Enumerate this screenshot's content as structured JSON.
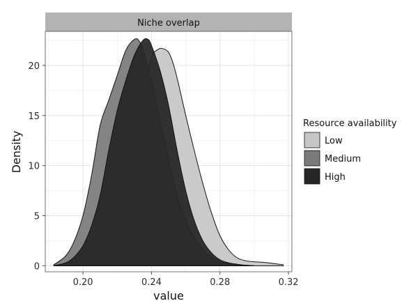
{
  "chart_data": {
    "type": "area",
    "facet_title": "Niche overlap",
    "xlabel": "value",
    "ylabel": "Density",
    "xlim": [
      0.178,
      0.322
    ],
    "ylim": [
      -0.6,
      23.4
    ],
    "x_ticks": [
      0.2,
      0.24,
      0.28,
      0.32
    ],
    "x_tick_labels": [
      "0.20",
      "0.24",
      "0.28",
      "0.32"
    ],
    "y_ticks": [
      0,
      5,
      10,
      15,
      20
    ],
    "y_tick_labels": [
      "0",
      "5",
      "10",
      "15",
      "20"
    ],
    "grid": true,
    "legend": {
      "title": "Resource availability",
      "position": "right",
      "entries": [
        "Low",
        "Medium",
        "High"
      ]
    },
    "series": [
      {
        "name": "Low",
        "color": "#c6c6c6",
        "x": [
          0.183,
          0.19,
          0.195,
          0.2,
          0.205,
          0.21,
          0.215,
          0.22,
          0.225,
          0.23,
          0.235,
          0.24,
          0.243,
          0.246,
          0.25,
          0.253,
          0.256,
          0.26,
          0.265,
          0.27,
          0.275,
          0.28,
          0.285,
          0.29,
          0.295,
          0.3,
          0.305,
          0.31,
          0.317
        ],
        "y": [
          0.1,
          0.3,
          0.6,
          1.2,
          2.0,
          3.2,
          5.0,
          7.5,
          10.5,
          14.0,
          17.5,
          20.8,
          21.5,
          21.7,
          21.3,
          20.0,
          18.0,
          15.0,
          11.5,
          8.2,
          5.3,
          3.0,
          1.6,
          0.8,
          0.5,
          0.4,
          0.35,
          0.25,
          0.1
        ]
      },
      {
        "name": "Medium",
        "color": "#7b7b7b",
        "x": [
          0.183,
          0.19,
          0.195,
          0.2,
          0.205,
          0.21,
          0.215,
          0.22,
          0.225,
          0.23,
          0.233,
          0.236,
          0.24,
          0.245,
          0.25,
          0.255,
          0.26,
          0.265,
          0.27,
          0.275,
          0.28,
          0.285,
          0.29,
          0.295,
          0.3
        ],
        "y": [
          0.1,
          1.0,
          2.5,
          5.0,
          9.0,
          14.0,
          16.5,
          19.0,
          21.5,
          22.6,
          22.4,
          21.0,
          18.5,
          14.5,
          10.5,
          7.0,
          4.5,
          2.8,
          1.6,
          0.8,
          0.4,
          0.2,
          0.1,
          0.05,
          0.0
        ]
      },
      {
        "name": "High",
        "color": "#262626",
        "x": [
          0.183,
          0.19,
          0.195,
          0.2,
          0.205,
          0.21,
          0.215,
          0.22,
          0.225,
          0.23,
          0.235,
          0.238,
          0.24,
          0.245,
          0.25,
          0.255,
          0.26,
          0.265,
          0.27,
          0.275,
          0.28,
          0.285,
          0.29,
          0.295,
          0.3
        ],
        "y": [
          0.0,
          0.3,
          0.9,
          2.0,
          4.0,
          7.0,
          11.5,
          15.5,
          18.5,
          21.0,
          22.5,
          22.6,
          22.0,
          19.5,
          16.0,
          11.5,
          7.5,
          4.5,
          2.5,
          1.3,
          0.6,
          0.3,
          0.15,
          0.05,
          0.0
        ]
      }
    ]
  }
}
